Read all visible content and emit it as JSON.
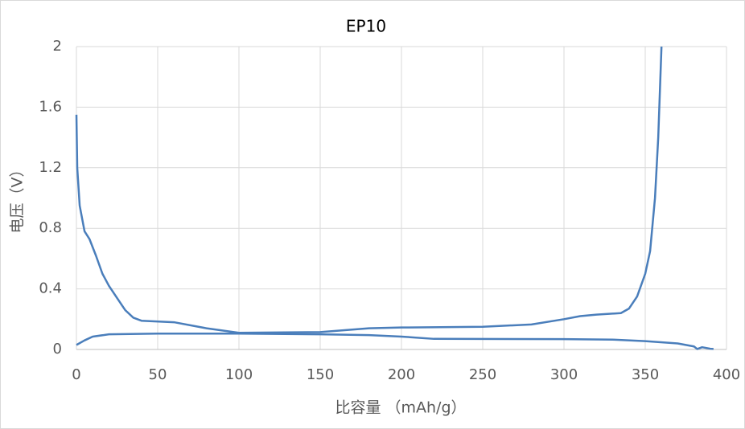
{
  "chart_data": {
    "type": "line",
    "title": "EP10",
    "x_label": "比容量 （mAh/g）",
    "y_label": "电压（V）",
    "xlim": [
      0,
      400
    ],
    "xticks": [
      0,
      50,
      100,
      150,
      200,
      250,
      300,
      350,
      400
    ],
    "ylim": [
      0,
      2
    ],
    "yticks": [
      0,
      0.4,
      0.8,
      1.2,
      1.6,
      2
    ],
    "grid": true,
    "series": [
      {
        "color": "#4a7ebb",
        "x": [
          0,
          0.5,
          2,
          5,
          8,
          12,
          16,
          20,
          25,
          30,
          35,
          40,
          60,
          80,
          100,
          150,
          180,
          200,
          250,
          280,
          300,
          310,
          320,
          335,
          340,
          345,
          350,
          353,
          356,
          358,
          360
        ],
        "values": [
          1.55,
          1.2,
          0.95,
          0.78,
          0.73,
          0.62,
          0.5,
          0.42,
          0.34,
          0.26,
          0.21,
          0.19,
          0.18,
          0.14,
          0.11,
          0.115,
          0.14,
          0.145,
          0.15,
          0.165,
          0.2,
          0.22,
          0.23,
          0.24,
          0.27,
          0.35,
          0.5,
          0.65,
          1.0,
          1.4,
          2.0
        ]
      },
      {
        "color": "#4a7ebb",
        "x": [
          0,
          5,
          10,
          20,
          50,
          100,
          150,
          180,
          200,
          220,
          300,
          330,
          350,
          370,
          380,
          382,
          385,
          390,
          392
        ],
        "values": [
          0.03,
          0.06,
          0.085,
          0.1,
          0.105,
          0.105,
          0.1,
          0.095,
          0.085,
          0.07,
          0.068,
          0.065,
          0.055,
          0.04,
          0.02,
          0.003,
          0.015,
          0.005,
          0.003
        ]
      }
    ]
  }
}
